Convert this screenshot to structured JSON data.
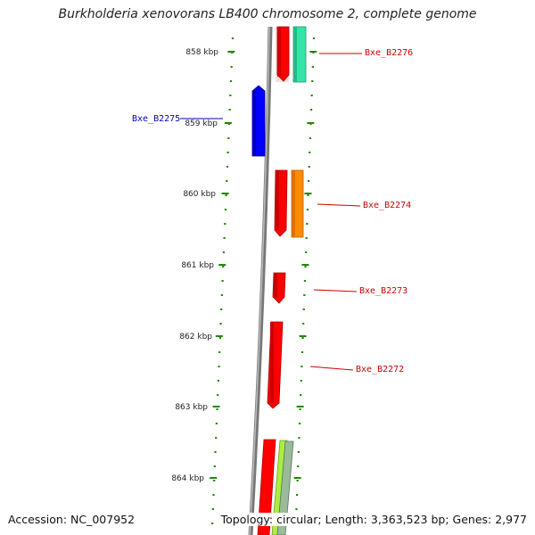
{
  "title": "Burkholderia xenovorans LB400 chromosome 2, complete genome",
  "axis": {
    "ticks": [
      {
        "label": "858 kbp"
      },
      {
        "label": "859 kbp"
      },
      {
        "label": "860 kbp"
      },
      {
        "label": "861 kbp"
      },
      {
        "label": "862 kbp"
      },
      {
        "label": "863 kbp"
      },
      {
        "label": "864 kbp"
      }
    ]
  },
  "genes": [
    {
      "name": "Bxe_B2276",
      "color": "#cc0000"
    },
    {
      "name": "Bxe_B2275",
      "color": "#0000bb"
    },
    {
      "name": "Bxe_B2274",
      "color": "#cc0000"
    },
    {
      "name": "Bxe_B2273",
      "color": "#cc0000"
    },
    {
      "name": "Bxe_B2272",
      "color": "#cc0000"
    }
  ],
  "colors": {
    "backbone": "#808080",
    "cds": "#ff0000",
    "teal_feature": "#33e6a8",
    "orange_feature": "#ff8c00",
    "lime_feature": "#aaee44",
    "gray_green_feature": "#99bb99",
    "blue_feature": "#0000ff",
    "tick_green": "#228800"
  },
  "footer": {
    "accession": "Accession: NC_007952",
    "summary": "Topology: circular; Length: 3,363,523 bp; Genes: 2,977"
  }
}
